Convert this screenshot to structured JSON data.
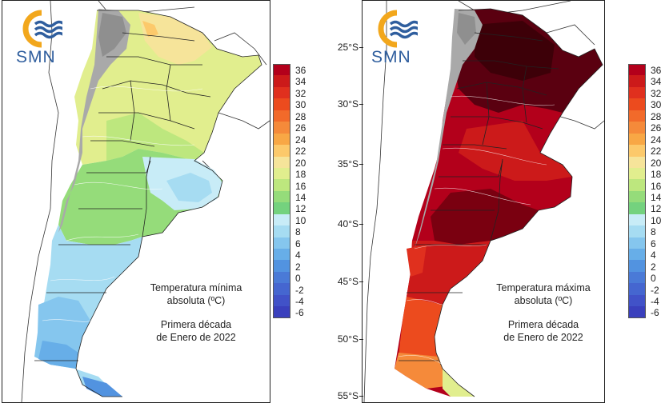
{
  "left_map": {
    "logo_text": "SMN",
    "caption_title_1": "Temperatura mínima",
    "caption_title_2": "absoluta (ºC)",
    "caption_period_1": "Primera década",
    "caption_period_2": "de Enero de 2022"
  },
  "right_map": {
    "logo_text": "SMN",
    "caption_title_1": "Temperatura máxima",
    "caption_title_2": "absoluta (ºC)",
    "caption_period_1": "Primera década",
    "caption_period_2": "de Enero de 2022",
    "latitude_labels": [
      "25°S",
      "30°S",
      "35°S",
      "40°S",
      "45°S",
      "50°S",
      "55°S"
    ]
  },
  "colorbar": {
    "labels": [
      "36",
      "34",
      "32",
      "30",
      "28",
      "26",
      "24",
      "22",
      "20",
      "18",
      "16",
      "14",
      "12",
      "10",
      "8",
      "6",
      "4",
      "2",
      "0",
      "-2",
      "-4",
      "-6"
    ],
    "colors": [
      "#b3001b",
      "#cc1a1a",
      "#e0301e",
      "#ec4b1e",
      "#f26a2a",
      "#f58a3a",
      "#f8a745",
      "#fcc96b",
      "#f6e49a",
      "#e1ee8e",
      "#bde77e",
      "#95dc7a",
      "#74d27e",
      "#c8ecf7",
      "#a6dcf2",
      "#85c6ee",
      "#67aee8",
      "#5293e0",
      "#4a7ad7",
      "#4566d0",
      "#4152c8",
      "#3a40bd"
    ]
  },
  "colors": {
    "logo_orange": "#f2a71c",
    "logo_blue": "#2f5e9e",
    "relief_gray": "#a9a9a9"
  }
}
